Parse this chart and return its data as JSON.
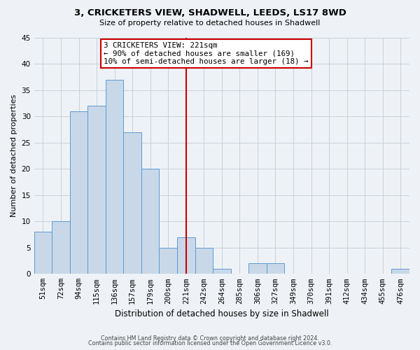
{
  "title": "3, CRICKETERS VIEW, SHADWELL, LEEDS, LS17 8WD",
  "subtitle": "Size of property relative to detached houses in Shadwell",
  "xlabel": "Distribution of detached houses by size in Shadwell",
  "ylabel": "Number of detached properties",
  "bar_labels": [
    "51sqm",
    "72sqm",
    "94sqm",
    "115sqm",
    "136sqm",
    "157sqm",
    "179sqm",
    "200sqm",
    "221sqm",
    "242sqm",
    "264sqm",
    "285sqm",
    "306sqm",
    "327sqm",
    "349sqm",
    "370sqm",
    "391sqm",
    "412sqm",
    "434sqm",
    "455sqm",
    "476sqm"
  ],
  "bar_values": [
    8,
    10,
    31,
    32,
    37,
    27,
    20,
    5,
    7,
    5,
    1,
    0,
    2,
    2,
    0,
    0,
    0,
    0,
    0,
    0,
    1
  ],
  "bar_color": "#c8d8e8",
  "bar_edge_color": "#5b9bd5",
  "marker_index": 8,
  "marker_line_color": "#cc0000",
  "annotation_line1": "3 CRICKETERS VIEW: 221sqm",
  "annotation_line2": "← 90% of detached houses are smaller (169)",
  "annotation_line3": "10% of semi-detached houses are larger (18) →",
  "annotation_box_color": "#ffffff",
  "annotation_box_edge_color": "#cc0000",
  "ylim": [
    0,
    45
  ],
  "yticks": [
    0,
    5,
    10,
    15,
    20,
    25,
    30,
    35,
    40,
    45
  ],
  "grid_color": "#c8d0d8",
  "bg_color": "#eef2f6",
  "footer_line1": "Contains HM Land Registry data © Crown copyright and database right 2024.",
  "footer_line2": "Contains public sector information licensed under the Open Government Licence v3.0."
}
